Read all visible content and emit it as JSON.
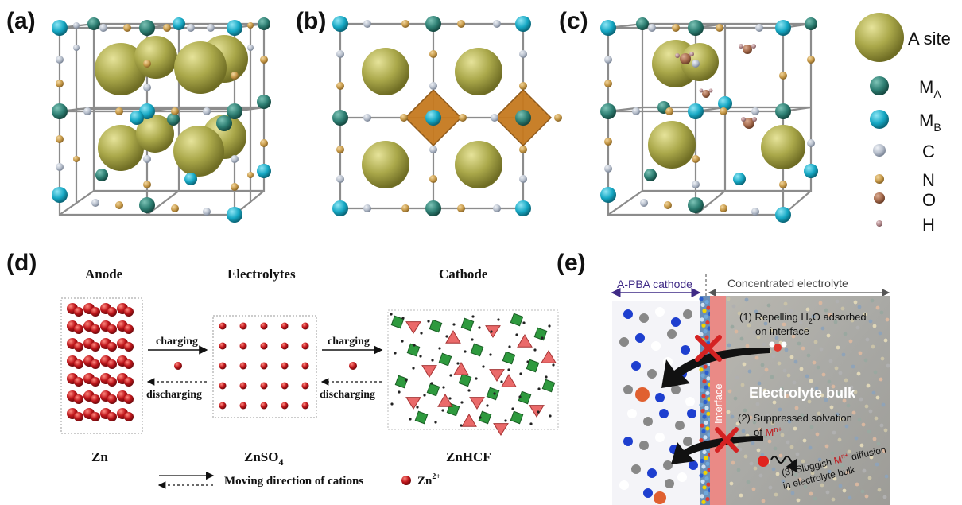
{
  "panels": {
    "a": "(a)",
    "b": "(b)",
    "c": "(c)",
    "d": "(d)",
    "e": "(e)"
  },
  "legend": {
    "a_site": "A site",
    "ma": "M",
    "ma_sub": "A",
    "mb": "M",
    "mb_sub": "B",
    "c": "C",
    "n": "N",
    "o": "O",
    "h": "H"
  },
  "panel_d": {
    "anode": "Anode",
    "electrolytes": "Electrolytes",
    "cathode": "Cathode",
    "charging_1": "charging",
    "discharging_1": "discharging",
    "charging_2": "charging",
    "discharging_2": "discharging",
    "zn": "Zn",
    "znso4": "ZnSO",
    "znso4_sub": "4",
    "znhcf": "ZnHCF",
    "moving_direction": "Moving direction of cations",
    "zn2": "Zn",
    "zn2_sup": "2+"
  },
  "panel_e": {
    "a_pba_cathode": "A-PBA cathode",
    "concentrated_electrolyte": "Concentrated electrolyte",
    "interface": "Interface",
    "step1_line1_a": "(1) Repelling H",
    "step1_line1_sub": "2",
    "step1_line1_b": "O  adsorbed",
    "step1_line2": "on interface",
    "electrolyte_bulk": "Electrolyte bulk",
    "step2_line1": "(2) Suppressed solvation",
    "step2_line2_a": "of ",
    "step2_line2_m": "M",
    "step2_line2_sup": "n+",
    "step3_line1_a": "(3) Sluggish ",
    "step3_line1_m": "M",
    "step3_line1_sup": "n+",
    "step3_line1_b": " diffusion",
    "step3_line2": "in electrolyte bulk"
  },
  "colors": {
    "a_site": "#a9a84a",
    "ma": "#2e7f73",
    "mb": "#16a8c4",
    "c": "#b7bfcc",
    "n": "#c89b4a",
    "o": "#a56a4c",
    "h": "#b89093",
    "octa": "#c67a1f",
    "zn_red": "#c0171c",
    "green": "#2e9a3e",
    "arrow_purple": "#3f2a86",
    "cross": "#d42222"
  }
}
